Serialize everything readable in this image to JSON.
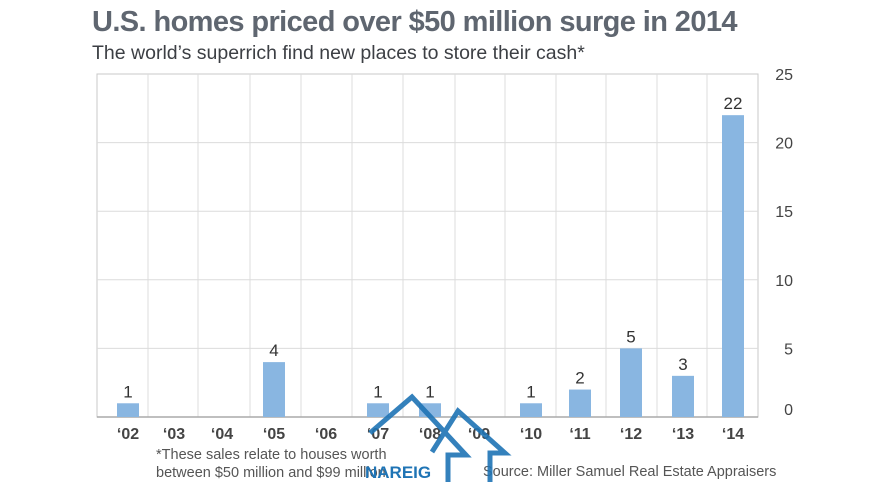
{
  "chart_data": {
    "type": "bar",
    "title": "U.S. homes priced over $50 million surge in 2014",
    "subtitle": "The world’s superrich find new places to store their cash*",
    "categories": [
      "‘02",
      "‘03",
      "‘04",
      "‘05",
      "‘06",
      "‘07",
      "‘08",
      "‘09",
      "‘10",
      "‘11",
      "‘12",
      "‘13",
      "‘14"
    ],
    "values": [
      1,
      0,
      0,
      4,
      0,
      1,
      1,
      0,
      1,
      2,
      5,
      3,
      22
    ],
    "data_labels": [
      "1",
      "",
      "",
      "4",
      "",
      "1",
      "1",
      "",
      "1",
      "2",
      "5",
      "3",
      "22"
    ],
    "ylim": [
      0,
      25
    ],
    "yticks": [
      0,
      5,
      10,
      15,
      20,
      25
    ],
    "y_axis_side": "right",
    "grid": true,
    "bar_color": "#89b6e1",
    "footnote": [
      "*These sales relate to houses worth",
      "between $50 million and $99 million"
    ],
    "source": "Source: Miller Samuel Real Estate Appraisers"
  },
  "watermark": {
    "text": "NAREIG",
    "color": "#1f74b5"
  }
}
